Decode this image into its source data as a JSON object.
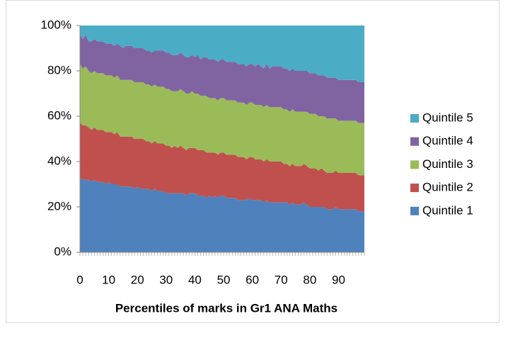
{
  "chart_data": {
    "type": "stacked_area_100",
    "x_label": "Percentiles of marks in Gr1 ANA Maths",
    "categories": [
      0,
      null,
      null,
      null,
      null,
      null,
      null,
      null,
      null,
      null,
      10,
      null,
      null,
      null,
      null,
      null,
      null,
      null,
      null,
      null,
      20,
      null,
      null,
      null,
      null,
      null,
      null,
      null,
      null,
      null,
      30,
      null,
      null,
      null,
      null,
      null,
      null,
      null,
      null,
      null,
      40,
      null,
      null,
      null,
      null,
      null,
      null,
      null,
      null,
      null,
      50,
      null,
      null,
      null,
      null,
      null,
      null,
      null,
      null,
      null,
      60,
      null,
      null,
      null,
      null,
      null,
      null,
      null,
      null,
      null,
      70,
      null,
      null,
      null,
      null,
      null,
      null,
      null,
      null,
      null,
      80,
      null,
      null,
      null,
      null,
      null,
      null,
      null,
      null,
      null,
      90,
      null,
      null,
      null,
      null,
      null,
      null,
      null,
      null,
      null
    ],
    "ylim": [
      0,
      100
    ],
    "yticks": [
      {
        "value": 0,
        "label": "0%"
      },
      {
        "value": 20,
        "label": "20%"
      },
      {
        "value": 40,
        "label": "40%"
      },
      {
        "value": 60,
        "label": "60%"
      },
      {
        "value": 80,
        "label": "80%"
      },
      {
        "value": 100,
        "label": "100%"
      }
    ],
    "legend": "right",
    "series": [
      {
        "name": "Quintile 1",
        "color": "#4f81bd",
        "values": [
          33,
          32,
          32,
          32,
          31,
          32,
          31,
          31,
          31,
          30,
          31,
          30,
          30,
          30,
          29,
          29,
          29,
          29,
          29,
          28,
          29,
          28,
          28,
          28,
          28,
          27,
          28,
          27,
          27,
          27,
          26,
          26,
          26,
          26,
          26,
          26,
          26,
          25,
          26,
          26,
          26,
          25,
          25,
          25,
          24,
          25,
          24,
          25,
          24,
          25,
          25,
          24,
          24,
          24,
          24,
          23,
          23,
          23,
          23,
          24,
          23,
          23,
          23,
          23,
          22,
          23,
          22,
          22,
          22,
          22,
          22,
          22,
          22,
          21,
          22,
          21,
          21,
          21,
          22,
          21,
          20,
          20,
          20,
          20,
          20,
          20,
          19,
          19,
          19,
          20,
          19,
          19,
          19,
          19,
          19,
          19,
          19,
          18,
          18,
          18
        ]
      },
      {
        "name": "Quintile 2",
        "color": "#c0504d",
        "values": [
          24,
          24,
          24,
          23,
          23,
          23,
          23,
          23,
          23,
          23,
          22,
          23,
          22,
          23,
          22,
          22,
          22,
          22,
          22,
          22,
          21,
          22,
          22,
          21,
          21,
          21,
          21,
          21,
          21,
          21,
          21,
          21,
          20,
          21,
          20,
          21,
          20,
          20,
          20,
          20,
          20,
          20,
          20,
          20,
          20,
          19,
          20,
          19,
          19,
          19,
          19,
          19,
          19,
          19,
          19,
          19,
          19,
          19,
          18,
          18,
          19,
          18,
          18,
          18,
          18,
          18,
          18,
          18,
          18,
          18,
          18,
          17,
          17,
          17,
          17,
          17,
          17,
          17,
          17,
          17,
          17,
          17,
          17,
          16,
          17,
          16,
          16,
          16,
          16,
          16,
          16,
          16,
          16,
          16,
          16,
          16,
          16,
          16,
          16,
          16
        ]
      },
      {
        "name": "Quintile 3",
        "color": "#9bbb59",
        "values": [
          26,
          25,
          26,
          25,
          25,
          25,
          25,
          25,
          25,
          25,
          25,
          25,
          25,
          25,
          25,
          25,
          25,
          25,
          25,
          25,
          25,
          25,
          25,
          25,
          25,
          25,
          25,
          25,
          25,
          25,
          25,
          25,
          25,
          24,
          25,
          25,
          25,
          25,
          24,
          25,
          24,
          25,
          24,
          24,
          25,
          24,
          24,
          24,
          24,
          24,
          24,
          24,
          24,
          24,
          24,
          24,
          24,
          24,
          24,
          24,
          24,
          24,
          24,
          24,
          24,
          24,
          24,
          24,
          24,
          24,
          24,
          24,
          24,
          24,
          24,
          24,
          24,
          24,
          23,
          24,
          24,
          24,
          24,
          24,
          23,
          24,
          24,
          24,
          24,
          23,
          23,
          23,
          23,
          23,
          23,
          23,
          23,
          23,
          23,
          23
        ]
      },
      {
        "name": "Quintile 4",
        "color": "#8064a2",
        "values": [
          13,
          13,
          14,
          13,
          14,
          14,
          14,
          14,
          14,
          14,
          14,
          14,
          14,
          14,
          15,
          14,
          15,
          15,
          15,
          15,
          15,
          15,
          15,
          15,
          15,
          15,
          15,
          16,
          16,
          16,
          16,
          16,
          16,
          16,
          16,
          16,
          16,
          16,
          16,
          16,
          16,
          17,
          16,
          17,
          17,
          17,
          17,
          17,
          17,
          17,
          17,
          17,
          17,
          17,
          17,
          17,
          17,
          17,
          17,
          17,
          17,
          17,
          18,
          17,
          17,
          18,
          17,
          18,
          18,
          18,
          18,
          18,
          18,
          18,
          18,
          18,
          18,
          18,
          18,
          18,
          18,
          18,
          18,
          18,
          18,
          18,
          18,
          18,
          18,
          18,
          18,
          18,
          18,
          18,
          18,
          18,
          18,
          18,
          18,
          18
        ]
      },
      {
        "name": "Quintile 5",
        "color": "#4bacc6",
        "values": [
          4,
          6,
          4,
          7,
          7,
          6,
          7,
          7,
          7,
          8,
          8,
          8,
          9,
          8,
          9,
          10,
          9,
          9,
          9,
          10,
          10,
          10,
          10,
          11,
          11,
          12,
          11,
          11,
          11,
          11,
          12,
          12,
          13,
          13,
          13,
          12,
          13,
          14,
          14,
          13,
          14,
          13,
          15,
          14,
          14,
          15,
          15,
          15,
          16,
          15,
          15,
          16,
          16,
          16,
          16,
          17,
          17,
          17,
          18,
          17,
          17,
          18,
          17,
          18,
          19,
          17,
          19,
          18,
          18,
          18,
          18,
          19,
          19,
          20,
          19,
          20,
          20,
          20,
          20,
          20,
          21,
          21,
          21,
          22,
          22,
          22,
          23,
          23,
          23,
          23,
          24,
          24,
          24,
          24,
          24,
          24,
          24,
          25,
          25,
          25
        ]
      }
    ]
  }
}
